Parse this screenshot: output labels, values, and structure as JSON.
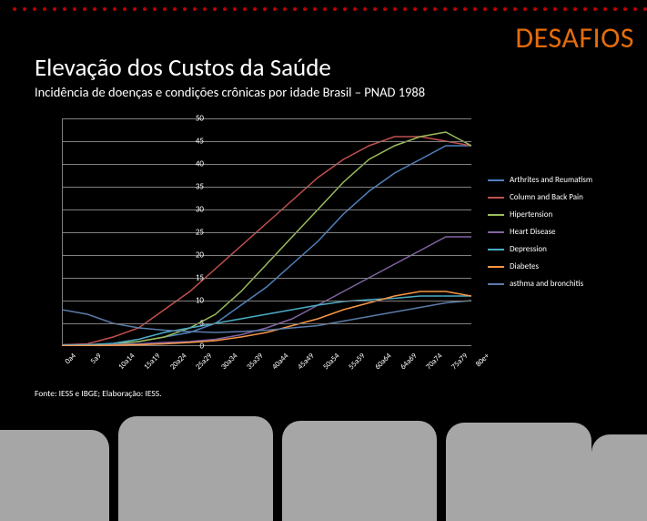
{
  "header": {
    "badge": "DESAFIOS",
    "title": "Elevação dos Custos da Saúde",
    "subtitle": "Incidência de doenças e condições crônicas por idade Brasil – PNAD 1988"
  },
  "chart": {
    "type": "line",
    "background_color": "#000000",
    "grid_color": "#808080",
    "axis_color": "#808080",
    "text_color": "#ffffff",
    "label_fontsize": 9,
    "ylim": [
      0,
      50
    ],
    "ytick_step": 5,
    "yticks": [
      0,
      5,
      10,
      15,
      20,
      25,
      30,
      35,
      40,
      45,
      50
    ],
    "categories": [
      "0a4",
      "5a9",
      "10a14",
      "15a19",
      "20a24",
      "25a29",
      "30a34",
      "35a39",
      "40a44",
      "45a49",
      "50a54",
      "55a59",
      "60a64",
      "64a69",
      "70a74",
      "75a79",
      "80e+"
    ],
    "line_width": 1.5,
    "series": [
      {
        "name": "Arthrites and Reumatism",
        "color": "#4f81bd",
        "values": [
          0.2,
          0.3,
          0.5,
          1,
          2,
          3,
          5,
          9,
          13,
          18,
          23,
          29,
          34,
          38,
          41,
          44,
          44
        ]
      },
      {
        "name": "Column and Back Pain",
        "color": "#c0504d",
        "values": [
          0.3,
          0.5,
          2,
          4,
          8,
          12,
          17,
          22,
          27,
          32,
          37,
          41,
          44,
          46,
          46,
          45,
          44
        ]
      },
      {
        "name": "Hipertension",
        "color": "#9bbb59",
        "values": [
          0.2,
          0.3,
          0.5,
          1,
          2,
          4,
          7,
          12,
          18,
          24,
          30,
          36,
          41,
          44,
          46,
          47,
          44
        ]
      },
      {
        "name": "Heart Disease",
        "color": "#8064a2",
        "values": [
          0.3,
          0.3,
          0.4,
          0.5,
          0.8,
          1,
          1.5,
          2.5,
          4,
          6,
          9,
          12,
          15,
          18,
          21,
          24,
          24
        ]
      },
      {
        "name": "Depression",
        "color": "#4bacc6",
        "values": [
          0.2,
          0.3,
          0.6,
          1.5,
          3,
          4,
          5,
          6,
          7,
          8,
          9,
          9.8,
          10.2,
          10.5,
          11,
          11,
          11
        ]
      },
      {
        "name": "Diabetes",
        "color": "#f79646",
        "values": [
          0.1,
          0.1,
          0.2,
          0.3,
          0.5,
          0.8,
          1.2,
          2,
          3,
          4.5,
          6,
          8,
          9.5,
          11,
          12,
          12,
          11
        ]
      },
      {
        "name": "asthma and bronchitis",
        "color": "#5a7ba8",
        "values": [
          8,
          7,
          5,
          4,
          3.5,
          3.2,
          3,
          3.2,
          3.5,
          4,
          4.5,
          5.5,
          6.5,
          7.5,
          8.5,
          9.5,
          10
        ]
      }
    ]
  },
  "source": "Fonte: IESS e IBGE; Elaboração: IESS.",
  "decor": {
    "dot_color": "#c00000",
    "blob_color": "#a6a6a6"
  }
}
